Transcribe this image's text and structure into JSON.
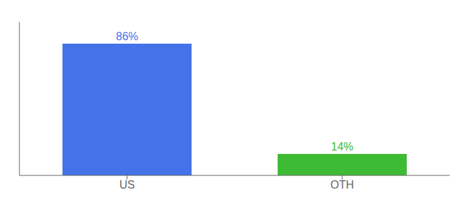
{
  "chart_data": {
    "type": "bar",
    "categories": [
      "US",
      "OTH"
    ],
    "values": [
      86,
      14
    ],
    "value_labels": [
      "86%",
      "14%"
    ],
    "colors": [
      "#4472e8",
      "#3dbb35"
    ],
    "ylim": [
      0,
      100
    ],
    "data_labels": true,
    "tick_labels": "x",
    "grid": false
  }
}
